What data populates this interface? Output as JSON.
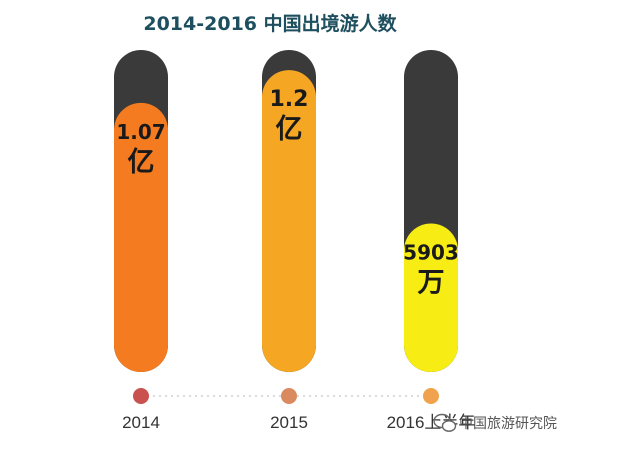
{
  "chart_data": {
    "type": "bar",
    "title": "2014-2016 中国出境游人数",
    "categories": [
      "2014",
      "2015",
      "2016上半年"
    ],
    "values": [
      1.07,
      1.2,
      0.5903
    ],
    "unit": "亿人次",
    "value_labels": [
      {
        "number": "1.07",
        "unit": "亿"
      },
      {
        "number": "1.2",
        "unit": "亿"
      },
      {
        "number": "5903",
        "unit": "万"
      }
    ],
    "ylim": [
      0,
      1.28
    ],
    "bar_colors": [
      "#f47b20",
      "#f5a623",
      "#f7ec13"
    ],
    "track_color": "#3a3a3a",
    "dot_colors": [
      "#c9514f",
      "#d98a5f",
      "#f0a24e"
    ],
    "axis_line_color": "#cfcfcf",
    "grid": false
  },
  "watermark": {
    "icon": "wechat-icon",
    "text": "中国旅游研究院"
  }
}
